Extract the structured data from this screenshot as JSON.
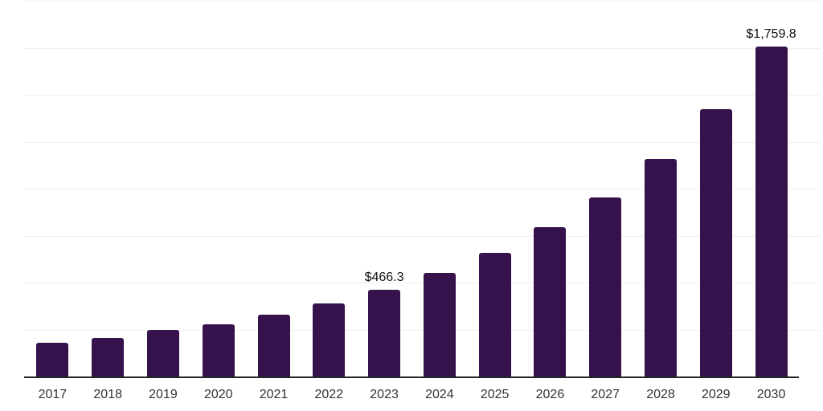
{
  "chart_data": {
    "type": "bar",
    "title": "",
    "xlabel": "",
    "ylabel": "",
    "categories": [
      "2017",
      "2018",
      "2019",
      "2020",
      "2021",
      "2022",
      "2023",
      "2024",
      "2025",
      "2026",
      "2027",
      "2028",
      "2029",
      "2030"
    ],
    "values": [
      182,
      211,
      252,
      283,
      333,
      392,
      466.3,
      556,
      662,
      798,
      957,
      1161,
      1427,
      1759.8
    ],
    "data_labels": [
      "",
      "",
      "",
      "",
      "",
      "",
      "$466.3",
      "",
      "",
      "",
      "",
      "",
      "",
      "$1,759.8"
    ],
    "ylim": [
      0,
      2000
    ],
    "grid_step": 250,
    "grid": true,
    "legend": false,
    "y_tick_labels_visible": false,
    "colors": {
      "bar": "#35124b",
      "axis_line": "#262626",
      "gridline": "#efefef",
      "x_tick_label": "#333333",
      "data_label": "#111111"
    }
  }
}
